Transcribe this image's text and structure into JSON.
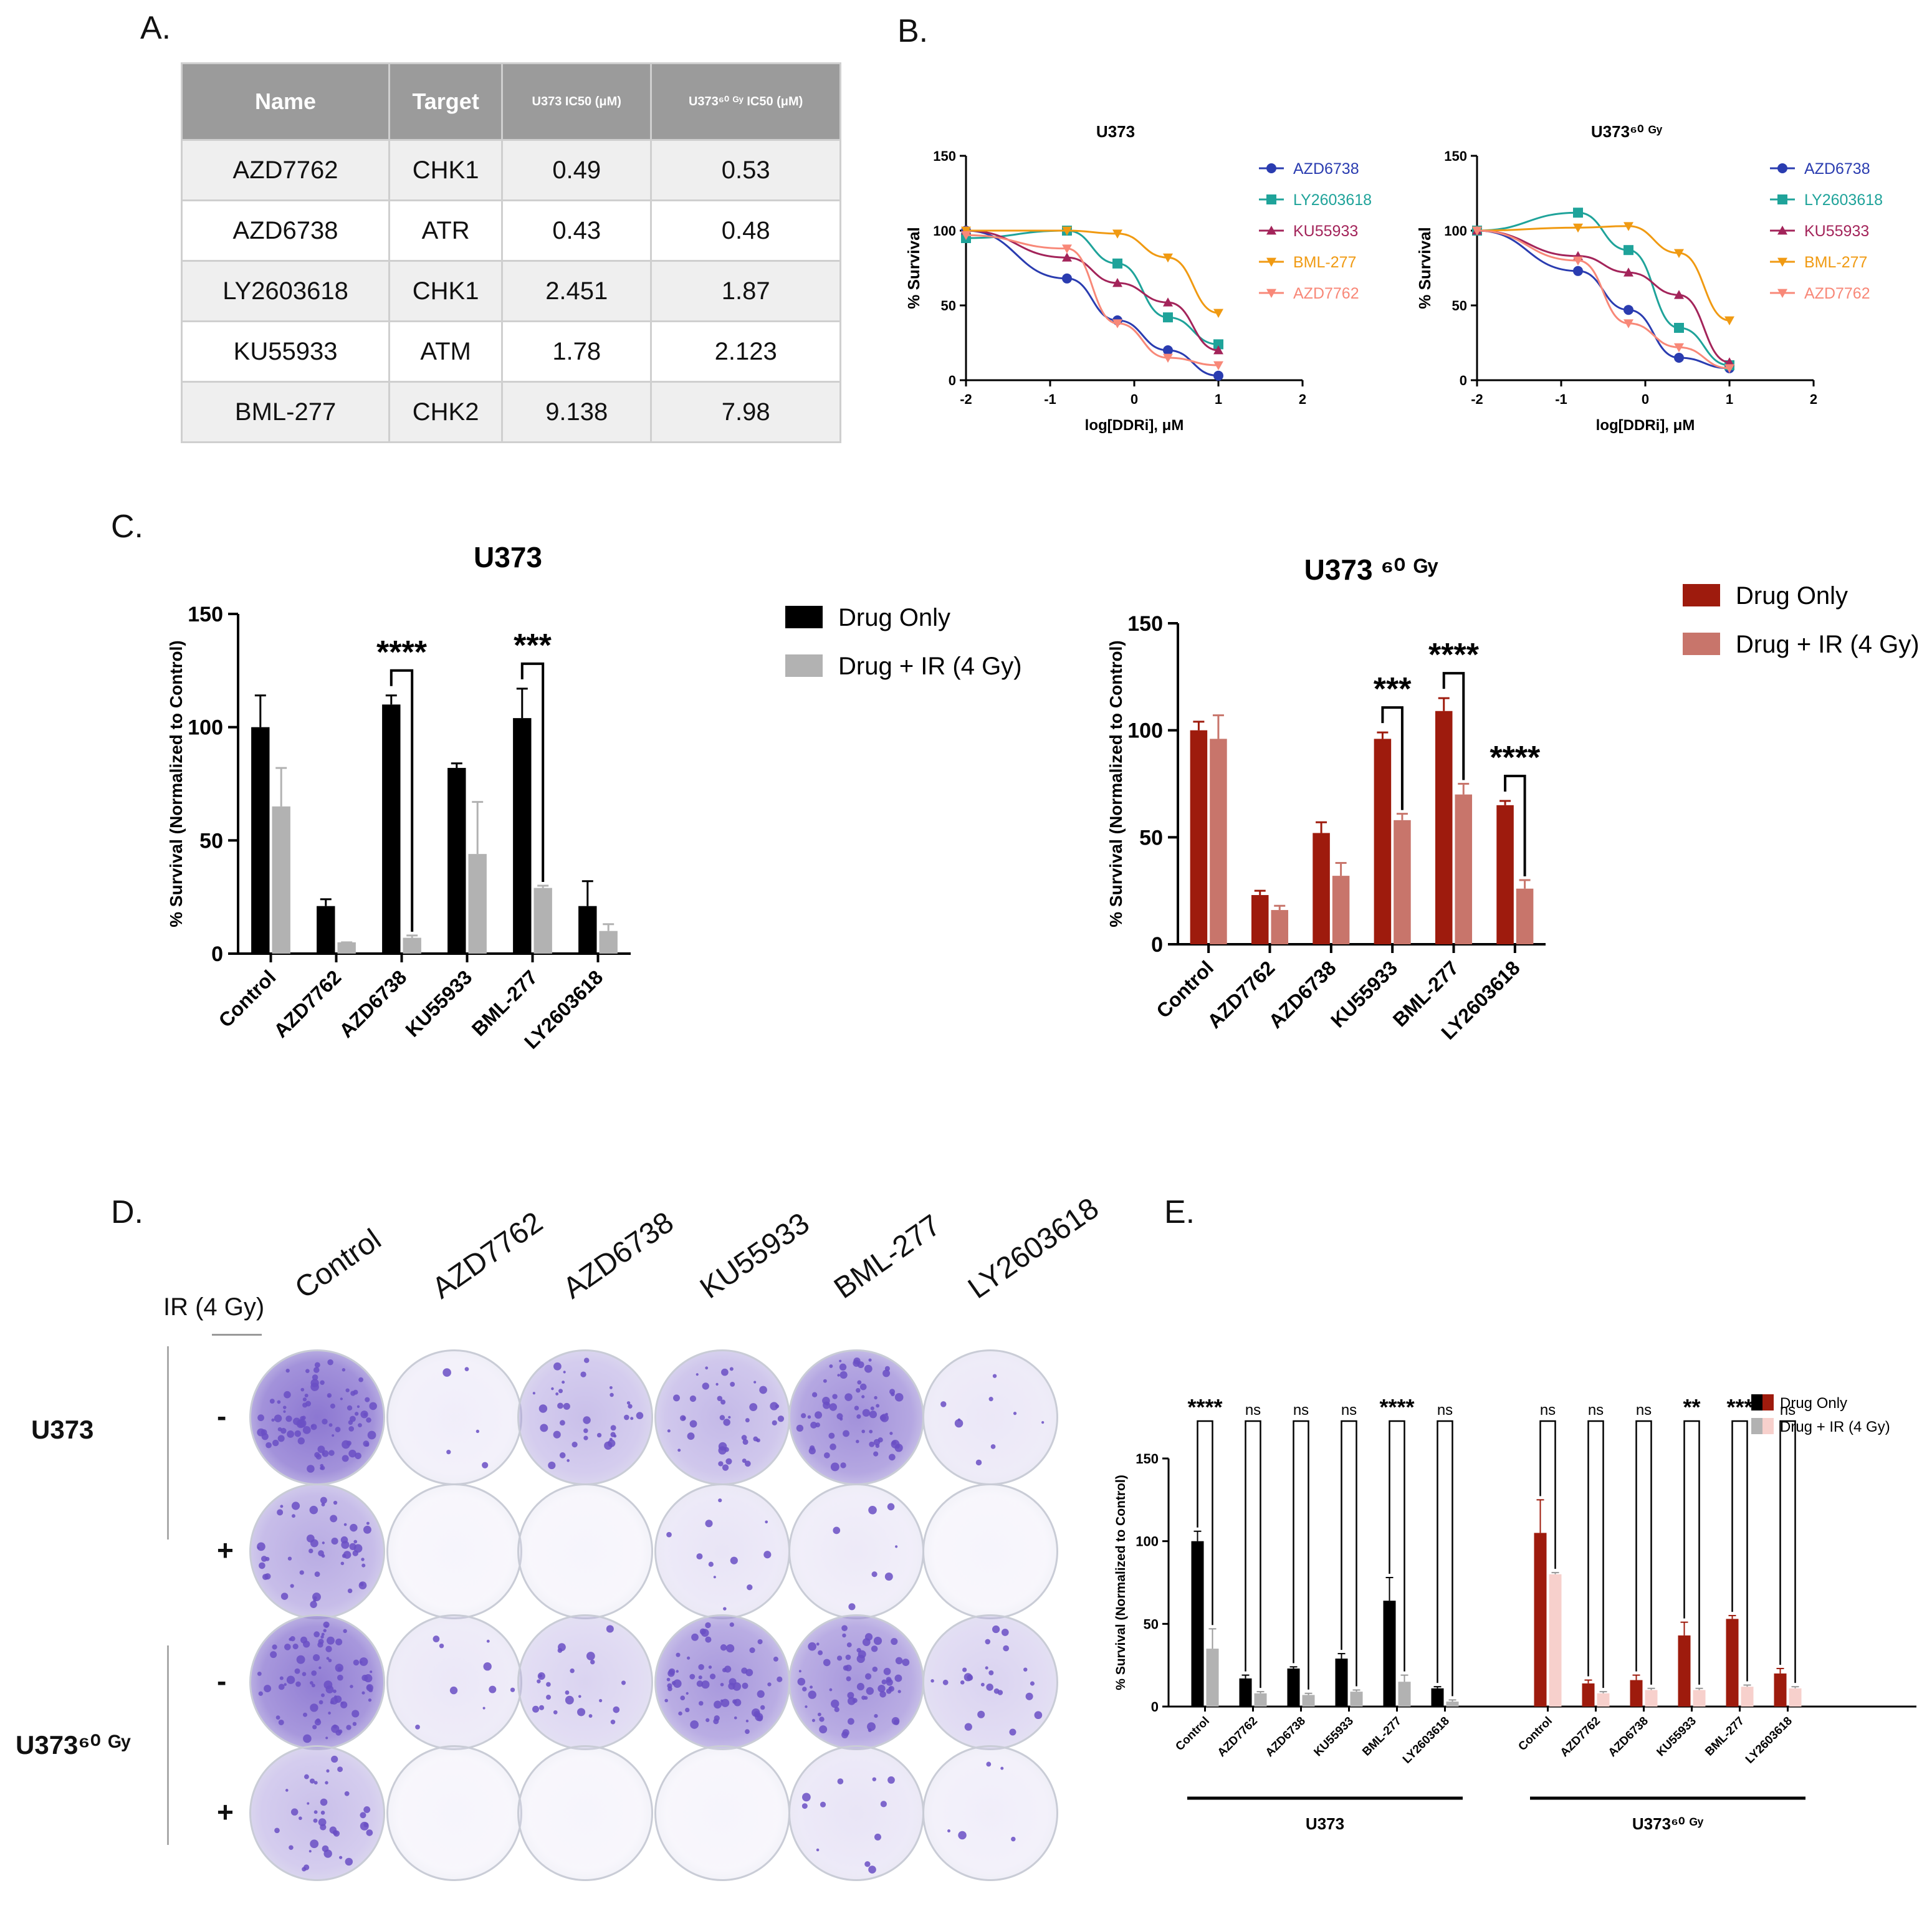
{
  "panel_labels": {
    "a": "A.",
    "b": "B.",
    "c": "C.",
    "d": "D.",
    "e": "E."
  },
  "table": {
    "headers": [
      "Name",
      "Target",
      "U373 IC50 (μM)",
      "U373⁶⁰ ᴳʸ IC50 (μM)"
    ],
    "rows": [
      [
        "AZD7762",
        "CHK1",
        "0.49",
        "0.53"
      ],
      [
        "AZD6738",
        "ATR",
        "0.43",
        "0.48"
      ],
      [
        "LY2603618",
        "CHK1",
        "2.451",
        "1.87"
      ],
      [
        "KU55933",
        "ATM",
        "1.78",
        "2.123"
      ],
      [
        "BML-277",
        "CHK2",
        "9.138",
        "7.98"
      ]
    ]
  },
  "panel_d": {
    "ir_label": "IR (4 Gy)",
    "columns": [
      "Control",
      "AZD7762",
      "AZD6738",
      "KU55933",
      "BML-277",
      "LY2603618"
    ],
    "row_signs": [
      "-",
      "+",
      "-",
      "+"
    ],
    "row_groups": [
      "U373",
      "U373⁶⁰ ᴳʸ"
    ],
    "stain_color": "#6a4fc4"
  },
  "chart_data": [
    {
      "id": "B1",
      "type": "line",
      "title": "U373",
      "xlabel": "log[DDRi], μM",
      "ylabel": "% Survival",
      "xlim": [
        -2,
        2
      ],
      "ylim": [
        0,
        150
      ],
      "xticks": [
        "-2",
        "-1",
        "0",
        "1",
        "2"
      ],
      "yticks": [
        "0",
        "50",
        "100",
        "150"
      ],
      "x": [
        -2,
        -0.8,
        -0.2,
        0.4,
        1.0
      ],
      "series": [
        {
          "name": "AZD6738",
          "color": "#2a3cb0",
          "marker": "circle",
          "values": [
            100,
            68,
            40,
            20,
            3
          ]
        },
        {
          "name": "LY2603618",
          "color": "#1fa39a",
          "marker": "square",
          "values": [
            95,
            100,
            78,
            42,
            24
          ]
        },
        {
          "name": "KU55933",
          "color": "#a3245a",
          "marker": "triangle",
          "values": [
            100,
            82,
            65,
            52,
            20
          ]
        },
        {
          "name": "BML-277",
          "color": "#f09a12",
          "marker": "tridown",
          "values": [
            100,
            100,
            98,
            82,
            45
          ]
        },
        {
          "name": "AZD7762",
          "color": "#f88878",
          "marker": "tridown",
          "values": [
            97,
            88,
            38,
            15,
            10
          ]
        }
      ]
    },
    {
      "id": "B2",
      "type": "line",
      "title": "U373⁶⁰ ᴳʸ",
      "xlabel": "log[DDRi], μM",
      "ylabel": "% Survival",
      "xlim": [
        -2,
        2
      ],
      "ylim": [
        0,
        150
      ],
      "xticks": [
        "-2",
        "-1",
        "0",
        "1",
        "2"
      ],
      "yticks": [
        "0",
        "50",
        "100",
        "150"
      ],
      "x": [
        -2,
        -0.8,
        -0.2,
        0.4,
        1.0
      ],
      "series": [
        {
          "name": "AZD6738",
          "color": "#2a3cb0",
          "marker": "circle",
          "values": [
            100,
            73,
            47,
            15,
            8
          ]
        },
        {
          "name": "LY2603618",
          "color": "#1fa39a",
          "marker": "square",
          "values": [
            100,
            112,
            87,
            35,
            10
          ]
        },
        {
          "name": "KU55933",
          "color": "#a3245a",
          "marker": "triangle",
          "values": [
            100,
            83,
            72,
            57,
            12
          ]
        },
        {
          "name": "BML-277",
          "color": "#f09a12",
          "marker": "tridown",
          "values": [
            100,
            102,
            103,
            85,
            40
          ]
        },
        {
          "name": "AZD7762",
          "color": "#f88878",
          "marker": "tridown",
          "values": [
            100,
            80,
            38,
            22,
            8
          ]
        }
      ]
    },
    {
      "id": "C1",
      "type": "bar",
      "title": "U373",
      "ylabel": "% Survival (Normalized to Control)",
      "ylim": [
        0,
        150
      ],
      "yticks": [
        "0",
        "50",
        "100",
        "150"
      ],
      "categories": [
        "Control",
        "AZD7762",
        "AZD6738",
        "KU55933",
        "BML-277",
        "LY2603618"
      ],
      "series": [
        {
          "name": "Drug Only",
          "color": "#000000",
          "values": [
            100,
            21,
            110,
            82,
            104,
            21
          ],
          "errors": [
            14,
            3,
            4,
            2,
            13,
            11
          ]
        },
        {
          "name": "Drug + IR (4 Gy)",
          "color": "#b2b2b2",
          "values": [
            65,
            5,
            7,
            44,
            29,
            10
          ],
          "errors": [
            17,
            0,
            1,
            23,
            1,
            3
          ]
        }
      ],
      "significance": [
        {
          "category": 2,
          "label": "****"
        },
        {
          "category": 4,
          "label": "***"
        }
      ]
    },
    {
      "id": "C2",
      "type": "bar",
      "title": "U373 ⁶⁰ ᴳʸ",
      "ylabel": "% Survival (Normalized to Control)",
      "ylim": [
        0,
        150
      ],
      "yticks": [
        "0",
        "50",
        "100",
        "150"
      ],
      "categories": [
        "Control",
        "AZD7762",
        "AZD6738",
        "KU55933",
        "BML-277",
        "LY2603618"
      ],
      "series": [
        {
          "name": "Drug Only",
          "color": "#9e1b0d",
          "values": [
            100,
            23,
            52,
            96,
            109,
            65
          ],
          "errors": [
            4,
            2,
            5,
            3,
            6,
            2
          ]
        },
        {
          "name": "Drug + IR (4 Gy)",
          "color": "#c8756b",
          "values": [
            96,
            16,
            32,
            58,
            70,
            26
          ],
          "errors": [
            11,
            2,
            6,
            3,
            5,
            4
          ]
        }
      ],
      "significance": [
        {
          "category": 3,
          "label": "***"
        },
        {
          "category": 4,
          "label": "****"
        },
        {
          "category": 5,
          "label": "****"
        }
      ]
    },
    {
      "id": "E",
      "type": "bar",
      "ylabel": "% Survival (Normalized to Control)",
      "ylim": [
        0,
        150
      ],
      "yticks": [
        "0",
        "50",
        "100",
        "150"
      ],
      "legend": [
        "Drug Only",
        "Drug + IR (4 Gy)"
      ],
      "groups": [
        {
          "name": "U373",
          "colors": [
            "#000000",
            "#b2b2b2"
          ],
          "categories": [
            "Control",
            "AZD7762",
            "AZD6738",
            "KU55933",
            "BML-277",
            "LY2603618"
          ],
          "drug_only": [
            100,
            17,
            23,
            29,
            64,
            11
          ],
          "drug_ir": [
            35,
            8,
            7,
            9,
            15,
            3
          ],
          "drug_only_err": [
            6,
            2,
            1,
            3,
            14,
            1
          ],
          "drug_ir_err": [
            12,
            1,
            1,
            1,
            4,
            1
          ],
          "significance": [
            "****",
            "ns",
            "ns",
            "ns",
            "****",
            "ns"
          ]
        },
        {
          "name": "U373⁶⁰ ᴳʸ",
          "colors": [
            "#9e1b0d",
            "#f7d0cc"
          ],
          "categories": [
            "Control",
            "AZD7762",
            "AZD6738",
            "KU55933",
            "BML-277",
            "LY2603618"
          ],
          "drug_only": [
            105,
            14,
            16,
            43,
            53,
            20
          ],
          "drug_ir": [
            80,
            8,
            10,
            10,
            12,
            11
          ],
          "drug_only_err": [
            20,
            2,
            3,
            8,
            2,
            3
          ],
          "drug_ir_err": [
            1,
            1,
            1,
            1,
            1,
            1
          ],
          "significance": [
            "ns",
            "ns",
            "ns",
            "**",
            "***",
            "ns"
          ]
        }
      ]
    }
  ]
}
